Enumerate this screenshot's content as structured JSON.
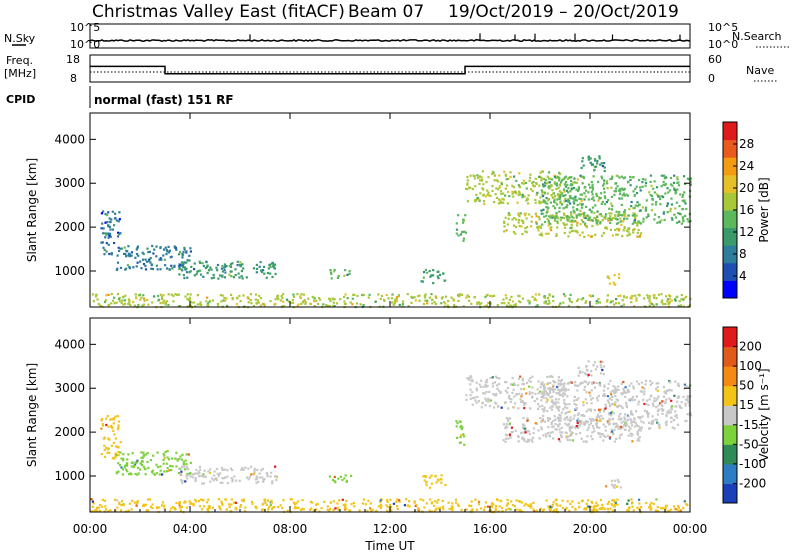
{
  "header": {
    "title": "Christmas Valley East (fitACF)",
    "beam": "Beam 07",
    "date_range": "19/Oct/2019 – 20/Oct/2019"
  },
  "top_panels": {
    "nsky_label": "N.Sky",
    "nsearch_label": "N.Search",
    "freq_label_1": "Freq.",
    "freq_label_2": "[MHz]",
    "nave_label": "Nave",
    "cpid_label": "CPID",
    "cpid_value": "normal (fast) 151 RF",
    "noise_ticks_left": [
      "10^5",
      "10^0"
    ],
    "noise_ticks_right": [
      "10^5",
      "10^0"
    ],
    "freq_ticks": [
      "18",
      "8"
    ],
    "nave_ticks": [
      "60",
      "0"
    ],
    "freq_segments": [
      {
        "from_h": 0.0,
        "to_h": 3.0,
        "freq": 14.0
      },
      {
        "from_h": 3.0,
        "to_h": 15.0,
        "freq": 10.5
      },
      {
        "from_h": 15.0,
        "to_h": 24.0,
        "freq": 14.0
      }
    ],
    "nave_level": 20,
    "noise_spikes_h": [
      6.4,
      15.6,
      17.0,
      17.8,
      19.4,
      20.9,
      23.6
    ]
  },
  "chart_data": [
    {
      "type": "heatmap",
      "name": "power",
      "ylabel": "Slant Range [km]",
      "yticks": [
        1000,
        2000,
        3000,
        4000
      ],
      "ylim": [
        180,
        4600
      ],
      "xlim_hours": [
        0,
        24
      ],
      "colorbar_label": "Power [dB]",
      "colorbar_ticks": [
        "28",
        "24",
        "20",
        "16",
        "12",
        "8",
        "4"
      ],
      "colorbar_range": [
        0,
        32
      ],
      "colorbar_colors": [
        "#0000ff",
        "#1f4fb0",
        "#2e7d9a",
        "#3a9a6a",
        "#5cb85c",
        "#a8c83a",
        "#e6c02a",
        "#f39c12",
        "#ea5a1c",
        "#e01a1a"
      ],
      "regions": [
        {
          "h0": 0.4,
          "h1": 1.2,
          "r0": 1400,
          "r1": 2400,
          "value": 7
        },
        {
          "h0": 1.0,
          "h1": 4.0,
          "r0": 1050,
          "r1": 1600,
          "value": 8
        },
        {
          "h0": 3.5,
          "h1": 7.5,
          "r0": 850,
          "r1": 1250,
          "value": 11
        },
        {
          "h0": 9.5,
          "h1": 10.4,
          "r0": 850,
          "r1": 1050,
          "value": 13
        },
        {
          "h0": 13.2,
          "h1": 14.2,
          "r0": 750,
          "r1": 1050,
          "value": 12
        },
        {
          "h0": 14.6,
          "h1": 15.0,
          "r0": 1700,
          "r1": 2300,
          "value": 14
        },
        {
          "h0": 15.0,
          "h1": 19.0,
          "r0": 2550,
          "r1": 3300,
          "value": 17
        },
        {
          "h0": 16.5,
          "h1": 22.0,
          "r0": 1800,
          "r1": 2350,
          "value": 19
        },
        {
          "h0": 18.0,
          "h1": 24.0,
          "r0": 2100,
          "r1": 3200,
          "value": 14
        },
        {
          "h0": 19.5,
          "h1": 20.6,
          "r0": 3300,
          "r1": 3650,
          "value": 10
        },
        {
          "h0": 20.6,
          "h1": 21.2,
          "r0": 700,
          "r1": 950,
          "value": 22
        },
        {
          "h0": 0.0,
          "h1": 24.0,
          "r0": 200,
          "r1": 500,
          "value": 18
        }
      ]
    },
    {
      "type": "heatmap",
      "name": "velocity",
      "ylabel": "Slant Range [km]",
      "yticks": [
        1000,
        2000,
        3000,
        4000
      ],
      "ylim": [
        180,
        4600
      ],
      "xlim_hours": [
        0,
        24
      ],
      "colorbar_label": "Velocity [m s⁻¹]",
      "colorbar_ticks": [
        "200",
        "100",
        "50",
        "15",
        "-15",
        "-50",
        "-100",
        "-200"
      ],
      "colorbar_colors": [
        "#1a3fb8",
        "#2d7dc4",
        "#2e8b57",
        "#7cd23a",
        "#c8c8c8",
        "#f2c417",
        "#f28a14",
        "#e05a1a",
        "#e01a1a"
      ],
      "regions": [
        {
          "h0": 0.4,
          "h1": 1.2,
          "r0": 1400,
          "r1": 2400,
          "value": "#f2c417"
        },
        {
          "h0": 1.0,
          "h1": 4.0,
          "r0": 1050,
          "r1": 1600,
          "value": "#7cd23a"
        },
        {
          "h0": 3.5,
          "h1": 7.5,
          "r0": 850,
          "r1": 1250,
          "value": "#c8c8c8"
        },
        {
          "h0": 9.5,
          "h1": 10.4,
          "r0": 850,
          "r1": 1050,
          "value": "#7cd23a"
        },
        {
          "h0": 13.2,
          "h1": 14.2,
          "r0": 750,
          "r1": 1050,
          "value": "#f2c417"
        },
        {
          "h0": 14.6,
          "h1": 15.0,
          "r0": 1700,
          "r1": 2300,
          "value": "#7cd23a"
        },
        {
          "h0": 15.0,
          "h1": 19.0,
          "r0": 2550,
          "r1": 3300,
          "value": "#c8c8c8"
        },
        {
          "h0": 16.5,
          "h1": 22.0,
          "r0": 1800,
          "r1": 2350,
          "value": "#c8c8c8"
        },
        {
          "h0": 18.0,
          "h1": 24.0,
          "r0": 2100,
          "r1": 3200,
          "value": "#c8c8c8"
        },
        {
          "h0": 19.5,
          "h1": 20.6,
          "r0": 3300,
          "r1": 3650,
          "value": "#c8c8c8"
        },
        {
          "h0": 20.6,
          "h1": 21.2,
          "r0": 700,
          "r1": 950,
          "value": "#c8c8c8"
        },
        {
          "h0": 0.0,
          "h1": 24.0,
          "r0": 200,
          "r1": 500,
          "value": "#f2c417"
        }
      ]
    }
  ],
  "x_axis": {
    "ticks": [
      "00:00",
      "04:00",
      "08:00",
      "12:00",
      "16:00",
      "20:00",
      "00:00"
    ],
    "label": "Time UT"
  }
}
